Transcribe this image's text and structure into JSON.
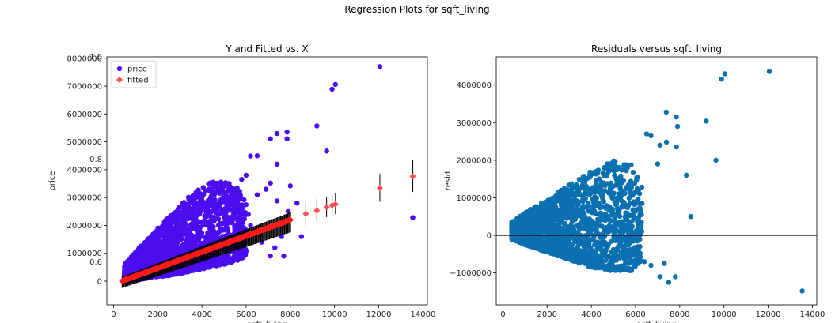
{
  "figure": {
    "suptitle": "Regression Plots for sqft_living"
  },
  "chart_data": [
    {
      "type": "scatter",
      "title": "Y and Fitted vs. X",
      "xlabel": "sqft_living",
      "ylabel": "price",
      "xlim": [
        -300,
        14200
      ],
      "ylim": [
        -850000,
        8050000
      ],
      "xticks": [
        0,
        2000,
        4000,
        6000,
        8000,
        10000,
        12000,
        14000
      ],
      "xtick_labels": [
        "0",
        "2000",
        "4000",
        "6000",
        "8000",
        "10000",
        "12000",
        "14000"
      ],
      "yticks": [
        0,
        1000000,
        2000000,
        3000000,
        4000000,
        5000000,
        6000000,
        7000000,
        8000000
      ],
      "ytick_labels": [
        "0",
        "1000000",
        "2000000",
        "3000000",
        "4000000",
        "5000000",
        "6000000",
        "7000000",
        "8000000"
      ],
      "overlay_ytick_labels": [
        "0.6",
        "0.8",
        "1.0"
      ],
      "legend": {
        "position": "top-left",
        "entries": [
          "price",
          "fitted"
        ]
      },
      "series": [
        {
          "name": "price",
          "color": "#4b0df0",
          "marker": "circle",
          "points": [
            [
              12050,
              7700000
            ],
            [
              10040,
              7060000
            ],
            [
              9890,
              6890000
            ],
            [
              9200,
              5570000
            ],
            [
              7390,
              5300000
            ],
            [
              7850,
              5350000
            ],
            [
              7100,
              5110000
            ],
            [
              7850,
              5110000
            ],
            [
              9640,
              4670000
            ],
            [
              6200,
              4490000
            ],
            [
              6500,
              4500000
            ],
            [
              7400,
              4200000
            ],
            [
              6000,
              3800000
            ],
            [
              5800,
              3650000
            ],
            [
              7100,
              3520000
            ],
            [
              8000,
              3420000
            ],
            [
              7400,
              2880000
            ],
            [
              8300,
              2800000
            ],
            [
              7900,
              2500000
            ],
            [
              6500,
              3100000
            ],
            [
              6900,
              3300000
            ],
            [
              6100,
              2400000
            ],
            [
              13540,
              2280000
            ],
            [
              7600,
              1600000
            ],
            [
              7300,
              1200000
            ],
            [
              7100,
              900000
            ],
            [
              6700,
              1400000
            ],
            [
              6200,
              2000000
            ],
            [
              8500,
              1600000
            ],
            [
              7700,
              900000
            ]
          ],
          "cloud": [
            {
              "x": 500,
              "lower": 0,
              "upper": 600000
            },
            {
              "x": 1500,
              "lower": 100000,
              "upper": 1500000
            },
            {
              "x": 2500,
              "lower": 200000,
              "upper": 2300000
            },
            {
              "x": 3500,
              "lower": 350000,
              "upper": 3100000
            },
            {
              "x": 4500,
              "lower": 500000,
              "upper": 3600000
            },
            {
              "x": 5500,
              "lower": 700000,
              "upper": 3500000
            },
            {
              "x": 6000,
              "lower": 900000,
              "upper": 2900000
            }
          ]
        },
        {
          "name": "fitted",
          "color": "#ff4f4f",
          "marker": "diamond",
          "line": {
            "x": [
              400,
              8000
            ],
            "y": [
              10000,
              2200000
            ]
          },
          "points": [
            [
              8700,
              2420000
            ],
            [
              9200,
              2530000
            ],
            [
              9640,
              2650000
            ],
            [
              9890,
              2720000
            ],
            [
              10040,
              2760000
            ],
            [
              12050,
              3340000
            ],
            [
              13540,
              3760000
            ]
          ],
          "error_bars": [
            [
              8700,
              2000000,
              2850000
            ],
            [
              9200,
              2150000,
              2950000
            ],
            [
              9640,
              2300000,
              3020000
            ],
            [
              9890,
              2350000,
              3100000
            ],
            [
              10040,
              2400000,
              3150000
            ],
            [
              12050,
              2850000,
              3850000
            ],
            [
              13540,
              3200000,
              4350000
            ]
          ]
        }
      ]
    },
    {
      "type": "scatter",
      "title": "Residuals versus sqft_living",
      "xlabel": "sqft_living",
      "ylabel": "resid",
      "xlim": [
        -300,
        14200
      ],
      "ylim": [
        -1850000,
        4750000
      ],
      "xticks": [
        0,
        2000,
        4000,
        6000,
        8000,
        10000,
        12000,
        14000
      ],
      "xtick_labels": [
        "0",
        "2000",
        "4000",
        "6000",
        "8000",
        "10000",
        "12000",
        "14000"
      ],
      "yticks": [
        -1000000,
        0,
        1000000,
        2000000,
        3000000,
        4000000
      ],
      "ytick_labels": [
        "−1000000",
        "0",
        "1000000",
        "2000000",
        "3000000",
        "4000000"
      ],
      "hline": 0,
      "series": [
        {
          "color": "#0a70b0",
          "marker": "circle",
          "points": [
            [
              12050,
              4360000
            ],
            [
              10040,
              4300000
            ],
            [
              9890,
              4160000
            ],
            [
              9640,
              2000000
            ],
            [
              9200,
              3040000
            ],
            [
              7390,
              3280000
            ],
            [
              7850,
              3150000
            ],
            [
              7900,
              2900000
            ],
            [
              6500,
              2700000
            ],
            [
              6700,
              2650000
            ],
            [
              7400,
              2480000
            ],
            [
              7850,
              2350000
            ],
            [
              7100,
              2400000
            ],
            [
              8300,
              1600000
            ],
            [
              8500,
              500000
            ],
            [
              7000,
              1900000
            ],
            [
              13540,
              -1480000
            ],
            [
              7500,
              -1250000
            ],
            [
              7100,
              -1100000
            ],
            [
              7800,
              -1100000
            ],
            [
              6700,
              -800000
            ],
            [
              7300,
              -750000
            ],
            [
              6400,
              -700000
            ]
          ],
          "cloud": [
            {
              "x": 400,
              "lower": -100000,
              "upper": 350000
            },
            {
              "x": 1000,
              "lower": -250000,
              "upper": 600000
            },
            {
              "x": 2000,
              "lower": -450000,
              "upper": 950000
            },
            {
              "x": 3000,
              "lower": -650000,
              "upper": 1350000
            },
            {
              "x": 4000,
              "lower": -850000,
              "upper": 1750000
            },
            {
              "x": 5000,
              "lower": -950000,
              "upper": 2000000
            },
            {
              "x": 5800,
              "lower": -950000,
              "upper": 1900000
            },
            {
              "x": 6300,
              "lower": -700000,
              "upper": 1300000
            }
          ]
        }
      ]
    }
  ]
}
